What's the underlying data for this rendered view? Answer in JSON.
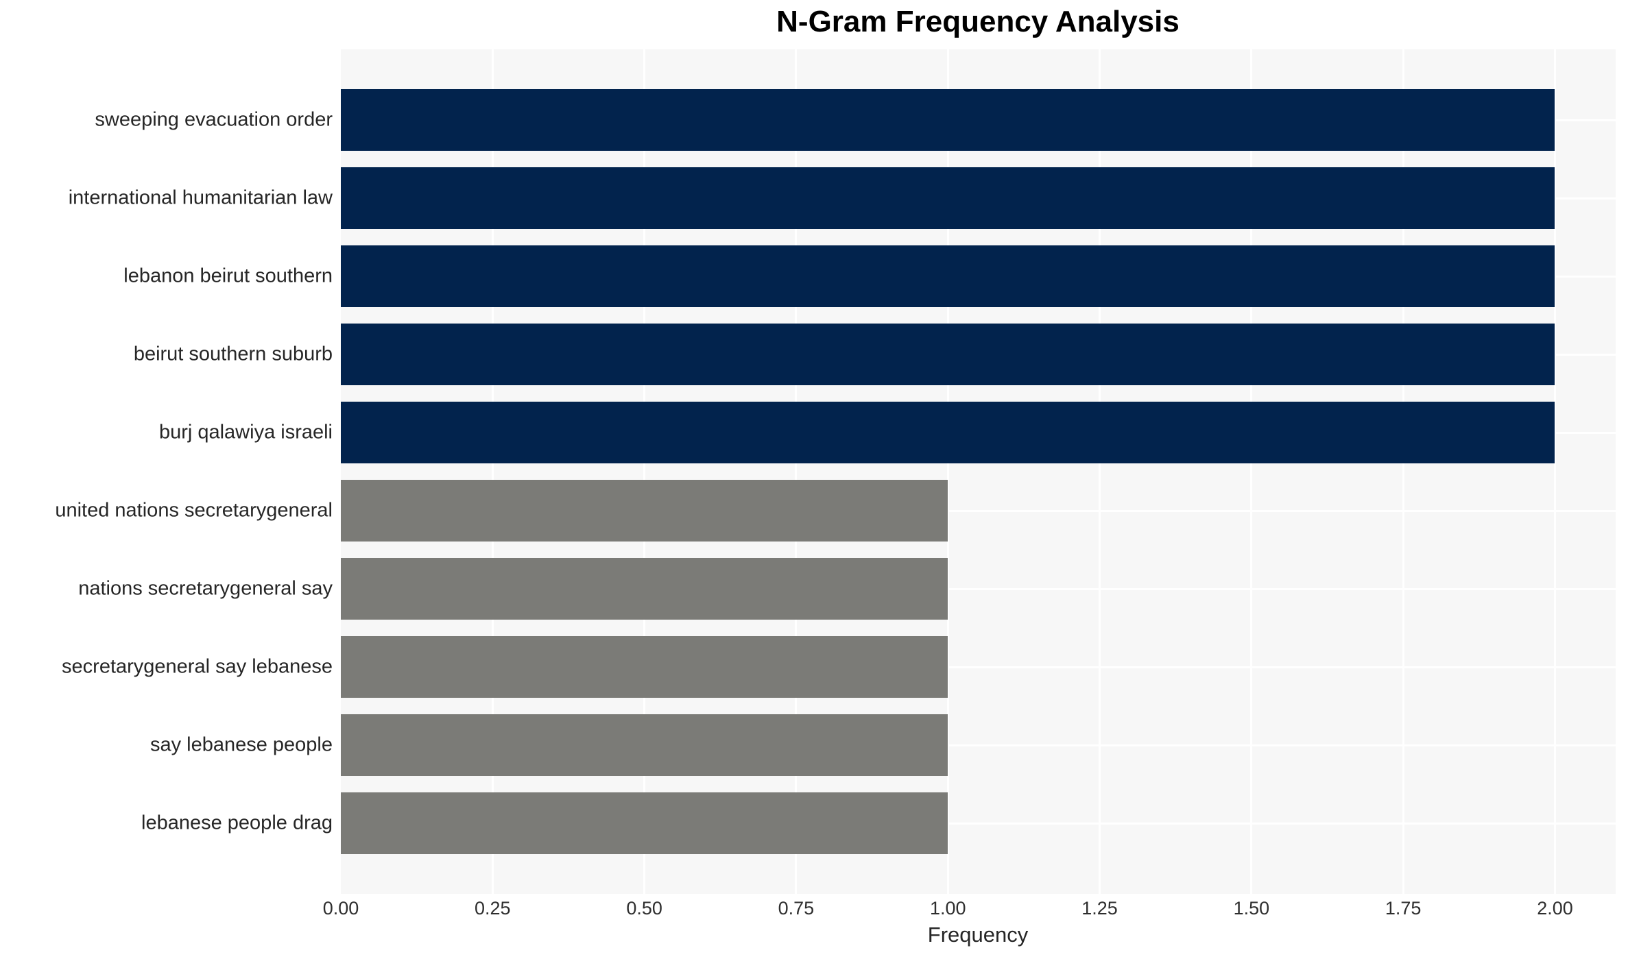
{
  "title": "N-Gram Frequency Analysis",
  "chart_data": {
    "type": "bar",
    "orientation": "horizontal",
    "title": "N-Gram Frequency Analysis",
    "xlabel": "Frequency",
    "ylabel": "",
    "categories": [
      "sweeping evacuation order",
      "international humanitarian law",
      "lebanon beirut southern",
      "beirut southern suburb",
      "burj qalawiya israeli",
      "united nations secretarygeneral",
      "nations secretarygeneral say",
      "secretarygeneral say lebanese",
      "say lebanese people",
      "lebanese people drag"
    ],
    "values": [
      2,
      2,
      2,
      2,
      2,
      1,
      1,
      1,
      1,
      1
    ],
    "bar_colors": [
      "#02234d",
      "#02234d",
      "#02234d",
      "#02234d",
      "#02234d",
      "#7b7b77",
      "#7b7b77",
      "#7b7b77",
      "#7b7b77",
      "#7b7b77"
    ],
    "xlim": [
      0,
      2.1
    ],
    "xticks": [
      {
        "value": 0.0,
        "label": "0.00"
      },
      {
        "value": 0.25,
        "label": "0.25"
      },
      {
        "value": 0.5,
        "label": "0.50"
      },
      {
        "value": 0.75,
        "label": "0.75"
      },
      {
        "value": 1.0,
        "label": "1.00"
      },
      {
        "value": 1.25,
        "label": "1.25"
      },
      {
        "value": 1.5,
        "label": "1.50"
      },
      {
        "value": 1.75,
        "label": "1.75"
      },
      {
        "value": 2.0,
        "label": "2.00"
      }
    ],
    "grid": true,
    "legend": false,
    "plot_background": "#f7f7f7",
    "grid_color": "#ffffff"
  }
}
